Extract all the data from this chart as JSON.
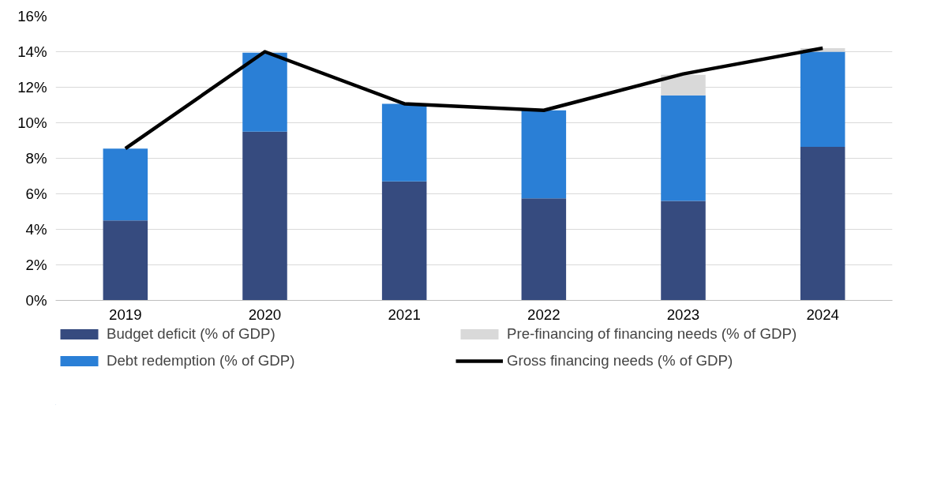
{
  "chart_data": {
    "type": "bar",
    "stacked": true,
    "categories": [
      "2019",
      "2020",
      "2021",
      "2022",
      "2023",
      "2024"
    ],
    "ylim": [
      0,
      16
    ],
    "yticks": [
      {
        "value": 0,
        "label": "0%"
      },
      {
        "value": 2,
        "label": "2%"
      },
      {
        "value": 4,
        "label": "4%"
      },
      {
        "value": 6,
        "label": "6%"
      },
      {
        "value": 8,
        "label": "8%"
      },
      {
        "value": 10,
        "label": "10%"
      },
      {
        "value": 12,
        "label": "12%"
      },
      {
        "value": 14,
        "label": "14%"
      },
      {
        "value": 16,
        "label": "16%"
      }
    ],
    "grid": "y",
    "legend": "bottom",
    "series": [
      {
        "name": "Budget deficit (% of GDP)",
        "color": "#364b7f",
        "values": [
          4.5,
          9.5,
          6.7,
          5.75,
          5.6,
          8.65
        ]
      },
      {
        "name": "Debt redemption (% of GDP)",
        "color": "#2a7fd6",
        "values": [
          4.05,
          4.45,
          4.37,
          4.95,
          5.95,
          5.35
        ]
      },
      {
        "name": "Pre-financing of financing needs (% of GDP)",
        "color": "#d9d9d9",
        "values": [
          null,
          null,
          null,
          null,
          1.15,
          0.2
        ]
      },
      {
        "name": "Gross financing needs (% of GDP)",
        "type": "line",
        "color": "#000000",
        "values": [
          8.55,
          14.0,
          11.07,
          10.7,
          12.75,
          14.2
        ]
      }
    ]
  }
}
